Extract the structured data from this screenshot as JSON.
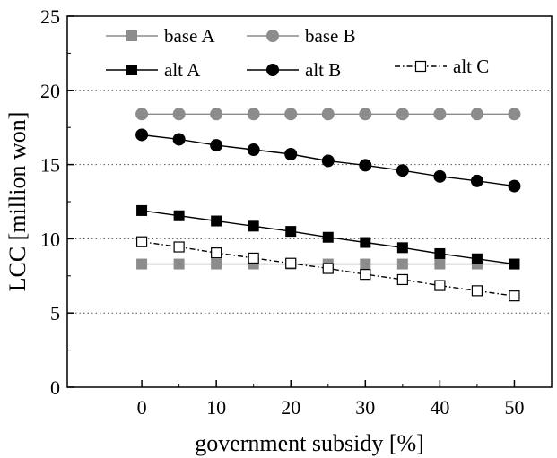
{
  "chart_data": {
    "type": "line",
    "xlabel": "government subsidy [%]",
    "ylabel": "LCC [million won]",
    "xlim": [
      -10,
      55
    ],
    "ylim": [
      0,
      25
    ],
    "xticks": [
      0,
      10,
      20,
      30,
      40,
      50
    ],
    "yticks": [
      0,
      5,
      10,
      15,
      20,
      25
    ],
    "grid": "horizontal dotted at 5, 10, 15, 20",
    "legend_placement": "top-left",
    "x": [
      0,
      5,
      10,
      15,
      20,
      25,
      30,
      35,
      40,
      45,
      50
    ],
    "series": [
      {
        "name": "base A",
        "marker": "square",
        "fill": "#8c8c8c",
        "line_color": "#8c8c8c",
        "dash": "solid",
        "values": [
          8.3,
          8.3,
          8.3,
          8.3,
          8.3,
          8.3,
          8.3,
          8.3,
          8.3,
          8.3,
          8.3
        ]
      },
      {
        "name": "base B",
        "marker": "circle",
        "fill": "#8c8c8c",
        "line_color": "#8c8c8c",
        "dash": "solid",
        "values": [
          18.4,
          18.4,
          18.4,
          18.4,
          18.4,
          18.4,
          18.4,
          18.4,
          18.4,
          18.4,
          18.4
        ]
      },
      {
        "name": "alt A",
        "marker": "square",
        "fill": "#000000",
        "line_color": "#000000",
        "dash": "solid",
        "values": [
          11.9,
          11.55,
          11.2,
          10.85,
          10.5,
          10.1,
          9.75,
          9.4,
          9.0,
          8.65,
          8.3
        ]
      },
      {
        "name": "alt B",
        "marker": "circle",
        "fill": "#000000",
        "line_color": "#000000",
        "dash": "solid",
        "values": [
          17.0,
          16.7,
          16.3,
          16.0,
          15.7,
          15.25,
          14.95,
          14.6,
          14.2,
          13.9,
          13.55
        ]
      },
      {
        "name": "alt C",
        "marker": "square-open",
        "fill": "#ffffff",
        "line_color": "#000000",
        "dash": "dashdot",
        "values": [
          9.8,
          9.45,
          9.05,
          8.7,
          8.35,
          8.0,
          7.6,
          7.25,
          6.85,
          6.5,
          6.15
        ]
      }
    ]
  }
}
